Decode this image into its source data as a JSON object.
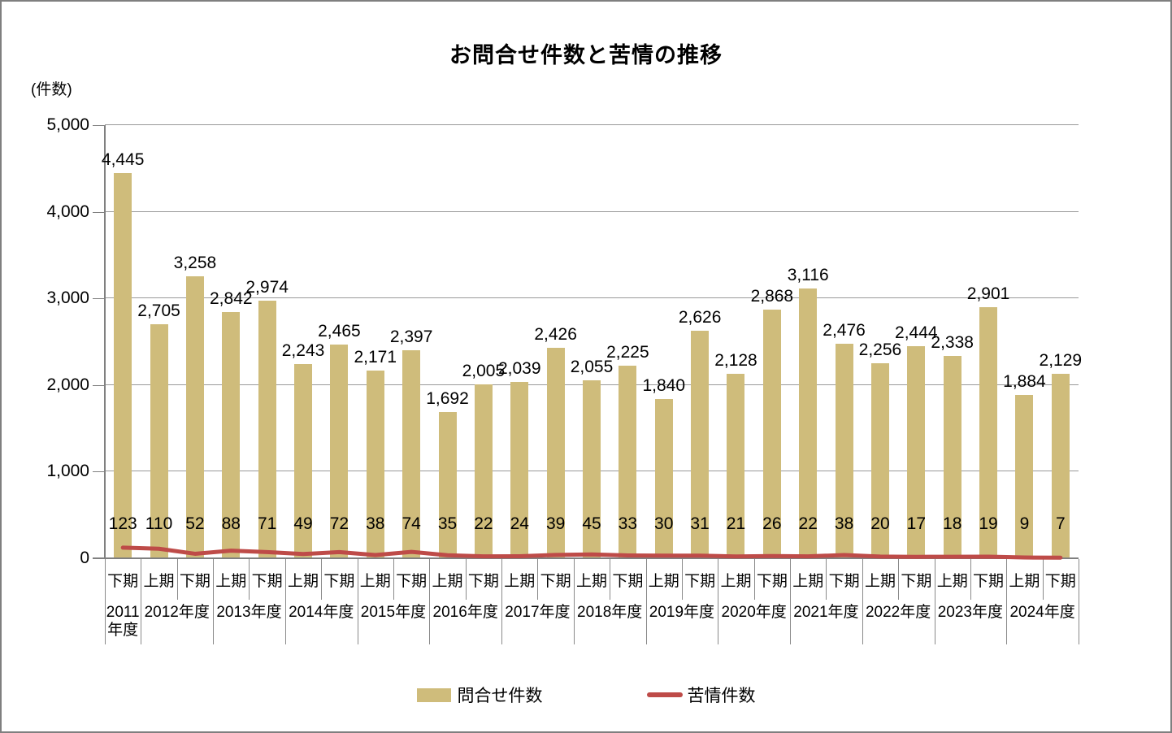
{
  "title": "お問合せ件数と苦情の推移",
  "unit_label": "(件数)",
  "legend": {
    "bars_label": "問合せ件数",
    "line_label": "苦情件数"
  },
  "colors": {
    "bar": "#CFBC7B",
    "line": "#BE4B48",
    "grid": "#999999",
    "axis": "#808080",
    "table_line": "#8a8a8a"
  },
  "chart_data": {
    "type": "bar+line",
    "title": "お問合せ件数と苦情の推移",
    "ylabel": "(件数)",
    "ylim": [
      0,
      5000
    ],
    "y_ticks": [
      0,
      1000,
      2000,
      3000,
      4000,
      5000
    ],
    "grid": true,
    "legend_position": "bottom",
    "periods": [
      "下期",
      "上期",
      "下期",
      "上期",
      "下期",
      "上期",
      "下期",
      "上期",
      "下期",
      "上期",
      "下期",
      "上期",
      "下期",
      "上期",
      "下期",
      "上期",
      "下期",
      "上期",
      "下期",
      "上期",
      "下期",
      "上期",
      "下期",
      "上期",
      "下期",
      "上期",
      "下期"
    ],
    "year_groups": [
      {
        "label": "2011年度",
        "span": 1
      },
      {
        "label": "2012年度",
        "span": 2
      },
      {
        "label": "2013年度",
        "span": 2
      },
      {
        "label": "2014年度",
        "span": 2
      },
      {
        "label": "2015年度",
        "span": 2
      },
      {
        "label": "2016年度",
        "span": 2
      },
      {
        "label": "2017年度",
        "span": 2
      },
      {
        "label": "2018年度",
        "span": 2
      },
      {
        "label": "2019年度",
        "span": 2
      },
      {
        "label": "2020年度",
        "span": 2
      },
      {
        "label": "2021年度",
        "span": 2
      },
      {
        "label": "2022年度",
        "span": 2
      },
      {
        "label": "2023年度",
        "span": 2
      },
      {
        "label": "2024年度",
        "span": 2
      }
    ],
    "series": [
      {
        "name": "問合せ件数",
        "type": "bar",
        "values": [
          4445,
          2705,
          3258,
          2842,
          2974,
          2243,
          2465,
          2171,
          2397,
          1692,
          2005,
          2039,
          2426,
          2055,
          2225,
          1840,
          2626,
          2128,
          2868,
          3116,
          2476,
          2256,
          2444,
          2338,
          2901,
          1884,
          2129
        ]
      },
      {
        "name": "苦情件数",
        "type": "line",
        "values": [
          123,
          110,
          52,
          88,
          71,
          49,
          72,
          38,
          74,
          35,
          22,
          24,
          39,
          45,
          33,
          30,
          31,
          21,
          26,
          22,
          38,
          20,
          17,
          18,
          19,
          9,
          7
        ]
      }
    ]
  }
}
